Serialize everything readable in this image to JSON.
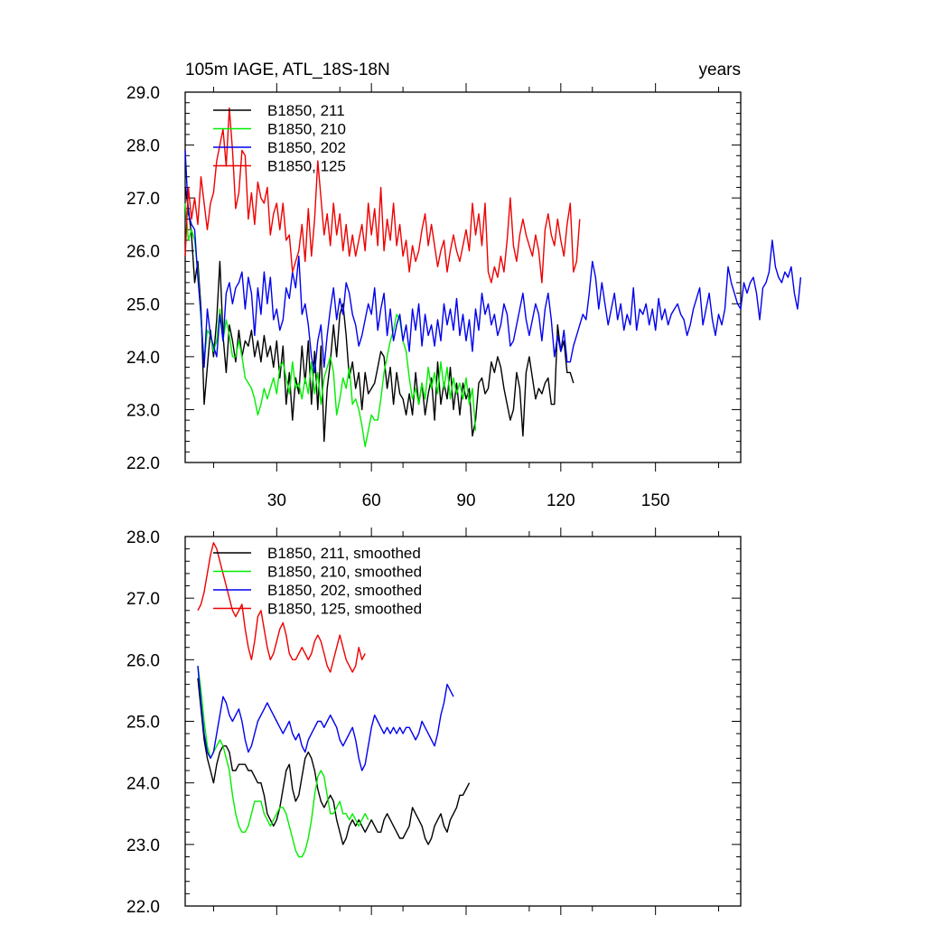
{
  "header": {
    "left": "105m IAGE, ATL_18S-18N",
    "right": "years"
  },
  "chart_data": [
    {
      "type": "line",
      "title": "105m IAGE, ATL_18S-18N",
      "xlabel": "years",
      "xlim": [
        1,
        177
      ],
      "ylim": [
        22.0,
        29.0
      ],
      "yticks": [
        "22.0",
        "23.0",
        "24.0",
        "25.0",
        "26.0",
        "27.0",
        "28.0",
        "29.0"
      ],
      "xticks": [
        "30",
        "60",
        "90",
        "120",
        "150"
      ],
      "legend_position": "top-left",
      "series": [
        {
          "name": "B1850, 211",
          "color": "#000000",
          "x0": 1,
          "values": [
            27.2,
            26.8,
            26.3,
            25.4,
            25.8,
            24.9,
            23.1,
            23.8,
            24.5,
            24.0,
            24.7,
            25.8,
            24.4,
            23.7,
            24.6,
            24.3,
            23.9,
            24.5,
            24.0,
            24.3,
            24.2,
            24.5,
            24.0,
            24.3,
            23.9,
            24.4,
            24.0,
            24.2,
            23.8,
            24.3,
            23.6,
            24.2,
            23.1,
            23.7,
            22.8,
            23.6,
            23.3,
            24.2,
            23.5,
            24.3,
            23.1,
            24.1,
            23.0,
            24.2,
            22.4,
            23.4,
            23.9,
            24.6,
            24.0,
            24.8,
            25.0,
            24.4,
            23.6,
            23.9,
            23.4,
            23.7,
            23.0,
            23.7,
            23.3,
            23.4,
            23.5,
            23.8,
            24.1,
            24.0,
            23.4,
            23.8,
            23.1,
            23.7,
            23.3,
            23.2,
            22.9,
            23.3,
            22.9,
            23.7,
            23.1,
            23.5,
            22.9,
            23.3,
            23.6,
            22.8,
            23.9,
            23.1,
            23.5,
            23.2,
            23.8,
            23.0,
            23.5,
            22.9,
            23.5,
            23.2,
            23.4,
            22.5,
            22.8,
            23.5,
            23.6,
            23.3,
            23.4,
            23.9,
            23.7,
            24.0,
            23.8,
            23.4,
            23.1,
            22.8,
            23.0,
            23.7,
            23.4,
            22.5,
            23.7,
            24.0,
            23.6,
            23.2,
            23.4,
            23.3,
            23.5,
            23.6,
            23.1,
            23.1,
            24.6,
            24.1,
            24.3,
            23.7,
            23.7,
            23.5
          ]
        },
        {
          "name": "B1850, 210",
          "color": "#00ee00",
          "x0": 1,
          "values": [
            26.9,
            26.2,
            26.4,
            26.2,
            25.6,
            24.7,
            23.9,
            24.5,
            24.4,
            24.1,
            24.3,
            24.9,
            24.3,
            24.7,
            24.4,
            24.0,
            24.0,
            24.3,
            24.0,
            23.6,
            23.5,
            23.4,
            23.2,
            22.9,
            23.1,
            23.4,
            23.2,
            23.4,
            23.6,
            23.3,
            23.8,
            23.9,
            23.6,
            23.3,
            23.9,
            23.4,
            23.5,
            23.2,
            23.6,
            23.3,
            23.9,
            23.3,
            23.7,
            23.1,
            23.6,
            23.8,
            24.0,
            23.7,
            22.9,
            23.2,
            23.6,
            23.4,
            23.8,
            23.1,
            23.2,
            23.0,
            22.7,
            22.3,
            22.6,
            22.9,
            22.8,
            22.8,
            23.2,
            23.7,
            24.0,
            24.3,
            24.5,
            24.8,
            24.7,
            24.3,
            24.1,
            23.6,
            23.2,
            23.4,
            23.1,
            23.5,
            23.2,
            23.8,
            23.4,
            23.7,
            23.3,
            23.9,
            23.4,
            23.8,
            23.2,
            23.6,
            23.3,
            23.5,
            23.2,
            23.6,
            23.1,
            23.4,
            22.6
          ]
        },
        {
          "name": "B1850, 202",
          "color": "#0000ee",
          "x0": 1,
          "values": [
            27.9,
            26.7,
            26.5,
            26.4,
            25.5,
            24.8,
            23.8,
            24.9,
            24.4,
            24.2,
            24.0,
            24.8,
            24.3,
            25.2,
            25.4,
            25.0,
            25.3,
            25.4,
            25.6,
            24.9,
            25.5,
            25.2,
            24.4,
            25.3,
            24.8,
            25.6,
            25.0,
            25.5,
            24.7,
            24.9,
            24.5,
            24.7,
            25.3,
            25.1,
            25.6,
            25.3,
            25.9,
            24.8,
            25.0,
            24.6,
            24.0,
            23.7,
            24.3,
            24.6,
            23.8,
            24.4,
            24.9,
            25.3,
            24.7,
            25.1,
            24.8,
            25.4,
            25.2,
            24.8,
            24.6,
            24.2,
            24.4,
            24.7,
            25.0,
            24.8,
            25.3,
            24.5,
            24.9,
            25.2,
            24.4,
            24.9,
            24.3,
            24.6,
            24.8,
            24.3,
            24.6,
            24.1,
            24.9,
            24.5,
            25.0,
            24.2,
            24.8,
            24.4,
            24.6,
            24.2,
            24.7,
            24.3,
            25.0,
            24.6,
            24.9,
            24.5,
            25.1,
            24.4,
            24.8,
            24.3,
            24.7,
            24.1,
            24.9,
            24.5,
            25.2,
            24.8,
            25.0,
            24.6,
            24.8,
            24.4,
            24.6,
            25.0,
            24.8,
            24.2,
            24.3,
            24.6,
            24.9,
            25.2,
            24.7,
            24.4,
            24.7,
            25.0,
            24.8,
            24.3,
            24.9,
            25.2,
            24.7,
            24.0,
            24.4,
            24.1,
            24.5,
            23.9,
            23.9,
            24.2,
            24.4,
            24.6,
            24.8,
            24.7,
            25.2,
            25.8,
            25.5,
            24.9,
            25.4,
            25.0,
            24.6,
            24.9,
            25.2,
            24.7,
            25.0,
            24.5,
            24.8,
            24.6,
            25.3,
            24.5,
            24.9,
            24.8,
            25.0,
            24.6,
            24.9,
            24.5,
            25.1,
            24.7,
            24.9,
            24.6,
            24.8,
            24.9,
            25.0,
            24.8,
            24.7,
            24.4,
            24.6,
            24.9,
            25.1,
            25.3,
            24.6,
            24.9,
            25.2,
            24.7,
            24.4,
            24.8,
            24.6,
            24.9,
            25.7,
            25.4,
            25.2,
            25.0,
            24.9,
            25.4,
            25.2,
            25.4,
            25.5,
            25.2,
            24.7,
            25.3,
            25.4,
            25.6,
            26.2,
            25.7,
            25.5,
            25.4,
            25.6,
            25.5,
            25.7,
            25.2,
            24.9,
            25.5
          ]
        },
        {
          "name": "B1850, 125",
          "color": "#ee0000",
          "x0": 1,
          "values": [
            25.9,
            27.2,
            26.6,
            27.0,
            26.5,
            27.4,
            26.9,
            26.4,
            26.9,
            27.1,
            27.7,
            28.0,
            28.3,
            27.6,
            28.7,
            27.9,
            26.8,
            27.1,
            27.9,
            27.8,
            26.6,
            27.1,
            26.5,
            27.3,
            27.0,
            26.9,
            27.2,
            26.3,
            26.7,
            26.9,
            26.4,
            26.9,
            26.2,
            26.3,
            25.6,
            25.8,
            26.0,
            26.5,
            25.8,
            26.8,
            25.9,
            26.6,
            27.7,
            27.0,
            26.3,
            26.7,
            26.1,
            26.9,
            26.3,
            26.7,
            26.0,
            26.5,
            25.9,
            26.3,
            25.9,
            26.2,
            26.5,
            26.0,
            26.9,
            26.3,
            26.8,
            26.1,
            27.2,
            26.0,
            26.6,
            26.2,
            26.9,
            26.1,
            26.5,
            25.9,
            26.2,
            25.6,
            26.1,
            25.8,
            26.0,
            26.4,
            26.7,
            26.1,
            26.5,
            26.1,
            25.7,
            26.0,
            26.2,
            25.6,
            26.0,
            26.3,
            26.0,
            25.8,
            26.1,
            26.4,
            26.0,
            26.9,
            26.3,
            26.7,
            26.1,
            26.9,
            25.6,
            25.4,
            25.7,
            25.5,
            25.9,
            25.6,
            26.2,
            27.0,
            26.1,
            25.8,
            26.3,
            26.6,
            26.3,
            26.1,
            25.9,
            26.3,
            26.0,
            25.4,
            26.4,
            26.7,
            26.3,
            26.1,
            26.6,
            26.2,
            25.9,
            26.5,
            26.9,
            25.6,
            25.8,
            26.6
          ]
        }
      ]
    },
    {
      "type": "line",
      "title": "",
      "xlabel": "",
      "xlim": [
        1,
        177
      ],
      "ylim": [
        22.0,
        28.0
      ],
      "yticks": [
        "22.0",
        "23.0",
        "24.0",
        "25.0",
        "26.0",
        "27.0",
        "28.0"
      ],
      "legend_position": "top-left",
      "series": [
        {
          "name": "B1850, 211, smoothed",
          "color": "#000000",
          "x0": 5,
          "values": [
            25.7,
            25.2,
            24.7,
            24.4,
            24.2,
            24.0,
            24.3,
            24.5,
            24.6,
            24.6,
            24.5,
            24.2,
            24.2,
            24.3,
            24.3,
            24.3,
            24.2,
            24.2,
            24.1,
            24.0,
            24.0,
            23.8,
            23.5,
            23.4,
            23.3,
            23.4,
            23.6,
            23.9,
            24.2,
            24.3,
            23.9,
            23.7,
            23.8,
            24.1,
            24.4,
            24.5,
            24.4,
            24.2,
            23.9,
            23.7,
            23.6,
            23.7,
            23.8,
            23.7,
            23.4,
            23.2,
            23.0,
            23.1,
            23.3,
            23.4,
            23.3,
            23.4,
            23.3,
            23.2,
            23.3,
            23.4,
            23.3,
            23.2,
            23.2,
            23.4,
            23.5,
            23.4,
            23.3,
            23.2,
            23.1,
            23.1,
            23.2,
            23.3,
            23.6,
            23.5,
            23.4,
            23.3,
            23.1,
            23.0,
            23.1,
            23.3,
            23.4,
            23.5,
            23.3,
            23.2,
            23.4,
            23.5,
            23.6,
            23.8,
            23.8,
            23.9,
            24.0
          ]
        },
        {
          "name": "B1850, 210, smoothed",
          "color": "#00ee00",
          "x0": 5,
          "values": [
            25.9,
            25.5,
            25.0,
            24.6,
            24.4,
            24.5,
            24.6,
            24.7,
            24.6,
            24.4,
            24.2,
            23.8,
            23.5,
            23.3,
            23.2,
            23.2,
            23.3,
            23.5,
            23.7,
            23.7,
            23.7,
            23.5,
            23.4,
            23.3,
            23.4,
            23.5,
            23.6,
            23.6,
            23.5,
            23.3,
            23.1,
            22.9,
            22.8,
            22.8,
            22.9,
            23.1,
            23.4,
            23.8,
            24.1,
            24.2,
            24.1,
            23.8,
            23.5,
            23.5,
            23.6,
            23.7,
            23.5,
            23.5,
            23.4,
            23.5,
            23.4,
            23.3,
            23.4,
            23.5,
            23.4
          ]
        },
        {
          "name": "B1850, 202, smoothed",
          "color": "#0000ee",
          "x0": 5,
          "values": [
            25.9,
            25.3,
            24.8,
            24.5,
            24.4,
            24.5,
            24.8,
            25.1,
            25.4,
            25.3,
            25.1,
            25.0,
            25.1,
            25.2,
            25.0,
            24.7,
            24.5,
            24.6,
            24.8,
            25.0,
            25.1,
            25.2,
            25.3,
            25.2,
            25.1,
            25.0,
            24.9,
            24.8,
            24.9,
            25.0,
            24.8,
            24.7,
            24.8,
            24.6,
            24.5,
            24.7,
            24.8,
            24.9,
            25.0,
            25.0,
            24.9,
            25.0,
            25.1,
            25.0,
            24.9,
            24.7,
            24.6,
            24.7,
            24.8,
            24.9,
            24.7,
            24.4,
            24.2,
            24.3,
            24.6,
            24.9,
            25.1,
            25.0,
            24.9,
            24.8,
            24.9,
            24.8,
            24.9,
            24.8,
            24.9,
            24.8,
            24.9,
            24.9,
            24.8,
            24.7,
            24.8,
            25.0,
            24.9,
            24.8,
            24.7,
            24.6,
            24.8,
            25.1,
            25.3,
            25.6,
            25.5,
            25.4
          ]
        },
        {
          "name": "B1850, 125, smoothed",
          "color": "#ee0000",
          "x0": 5,
          "values": [
            26.8,
            26.9,
            27.1,
            27.4,
            27.7,
            27.9,
            27.8,
            27.6,
            27.4,
            27.2,
            27.0,
            26.8,
            26.7,
            26.8,
            26.9,
            26.5,
            26.2,
            26.0,
            26.3,
            26.7,
            26.8,
            26.5,
            26.2,
            26.0,
            26.1,
            26.3,
            26.5,
            26.6,
            26.4,
            26.1,
            26.0,
            26.0,
            26.1,
            26.2,
            26.1,
            26.0,
            26.1,
            26.3,
            26.4,
            26.3,
            26.1,
            25.9,
            25.8,
            26.0,
            26.2,
            26.4,
            26.2,
            26.0,
            25.9,
            25.8,
            25.9,
            26.2,
            26.0,
            26.1
          ]
        }
      ]
    }
  ]
}
